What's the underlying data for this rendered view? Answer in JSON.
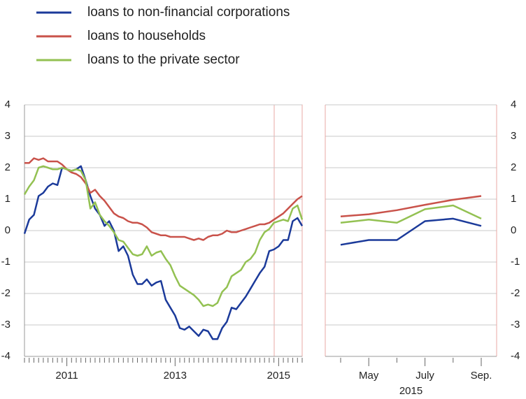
{
  "chart_data": [
    {
      "type": "line",
      "categories": [
        null,
        null,
        null,
        null,
        null,
        null,
        null,
        null,
        null,
        "2011",
        null,
        null,
        null,
        null,
        null,
        null,
        null,
        null,
        null,
        null,
        null,
        null,
        null,
        null,
        null,
        null,
        null,
        null,
        null,
        null,
        null,
        null,
        "2013",
        null,
        null,
        null,
        null,
        null,
        null,
        null,
        null,
        null,
        null,
        null,
        null,
        null,
        null,
        null,
        null,
        null,
        null,
        null,
        null,
        null,
        "2015",
        null,
        null,
        null,
        null,
        null
      ],
      "series": [
        {
          "name": "loans to non-financial corporations",
          "color": "#1b3a9a",
          "values": [
            -0.1,
            0.35,
            0.5,
            1.1,
            1.2,
            1.4,
            1.5,
            1.45,
            2.0,
            1.95,
            1.9,
            1.95,
            2.05,
            1.6,
            1.1,
            0.7,
            0.5,
            0.15,
            0.3,
            0.0,
            -0.65,
            -0.5,
            -0.8,
            -1.4,
            -1.7,
            -1.7,
            -1.55,
            -1.75,
            -1.65,
            -1.6,
            -2.2,
            -2.45,
            -2.7,
            -3.1,
            -3.15,
            -3.05,
            -3.2,
            -3.35,
            -3.15,
            -3.2,
            -3.45,
            -3.45,
            -3.1,
            -2.9,
            -2.45,
            -2.5,
            -2.3,
            -2.1,
            -1.85,
            -1.6,
            -1.35,
            -1.15,
            -0.65,
            -0.6,
            -0.5,
            -0.3,
            -0.3,
            0.3,
            0.4,
            0.15
          ]
        },
        {
          "name": "loans to households",
          "color": "#c9524a",
          "values": [
            2.15,
            2.15,
            2.3,
            2.25,
            2.3,
            2.2,
            2.2,
            2.2,
            2.1,
            1.95,
            1.85,
            1.8,
            1.7,
            1.5,
            1.2,
            1.3,
            1.1,
            0.95,
            0.75,
            0.55,
            0.45,
            0.4,
            0.3,
            0.25,
            0.25,
            0.2,
            0.1,
            -0.05,
            -0.1,
            -0.15,
            -0.15,
            -0.2,
            -0.2,
            -0.2,
            -0.2,
            -0.25,
            -0.3,
            -0.25,
            -0.3,
            -0.2,
            -0.15,
            -0.15,
            -0.1,
            0.0,
            -0.05,
            -0.05,
            0.0,
            0.05,
            0.1,
            0.15,
            0.2,
            0.2,
            0.25,
            0.35,
            0.45,
            0.55,
            0.7,
            0.85,
            1.0,
            1.1
          ]
        },
        {
          "name": "loans to the private sector",
          "color": "#93c152",
          "values": [
            1.15,
            1.4,
            1.6,
            2.0,
            2.05,
            2.0,
            1.95,
            1.95,
            2.0,
            1.95,
            1.9,
            1.95,
            1.9,
            1.6,
            0.7,
            0.9,
            0.5,
            0.3,
            0.15,
            -0.05,
            -0.3,
            -0.35,
            -0.55,
            -0.75,
            -0.8,
            -0.75,
            -0.5,
            -0.8,
            -0.7,
            -0.65,
            -0.9,
            -1.1,
            -1.45,
            -1.75,
            -1.85,
            -1.95,
            -2.05,
            -2.2,
            -2.4,
            -2.35,
            -2.4,
            -2.3,
            -1.95,
            -1.8,
            -1.45,
            -1.35,
            -1.25,
            -1.0,
            -0.9,
            -0.7,
            -0.3,
            -0.05,
            0.05,
            0.25,
            0.3,
            0.35,
            0.3,
            0.7,
            0.8,
            0.35
          ]
        }
      ],
      "ylim": [
        -4,
        4
      ],
      "yticks": [
        -4,
        -3,
        -2,
        -1,
        0,
        1,
        2,
        3,
        4
      ],
      "grid": true
    },
    {
      "type": "line",
      "categories": [
        null,
        "May",
        null,
        "July",
        null,
        "Sep."
      ],
      "x_label": "2015",
      "series": [
        {
          "color": "#1b3a9a",
          "values": [
            -0.45,
            -0.3,
            -0.3,
            0.3,
            0.38,
            0.15
          ]
        },
        {
          "color": "#c9524a",
          "values": [
            0.45,
            0.52,
            0.65,
            0.82,
            0.98,
            1.1
          ]
        },
        {
          "color": "#93c152",
          "values": [
            0.25,
            0.35,
            0.25,
            0.68,
            0.8,
            0.38
          ]
        }
      ],
      "ylim": [
        -4,
        4
      ],
      "yticks": [
        -4,
        -3,
        -2,
        -1,
        0,
        1,
        2,
        3,
        4
      ],
      "grid": true
    }
  ]
}
